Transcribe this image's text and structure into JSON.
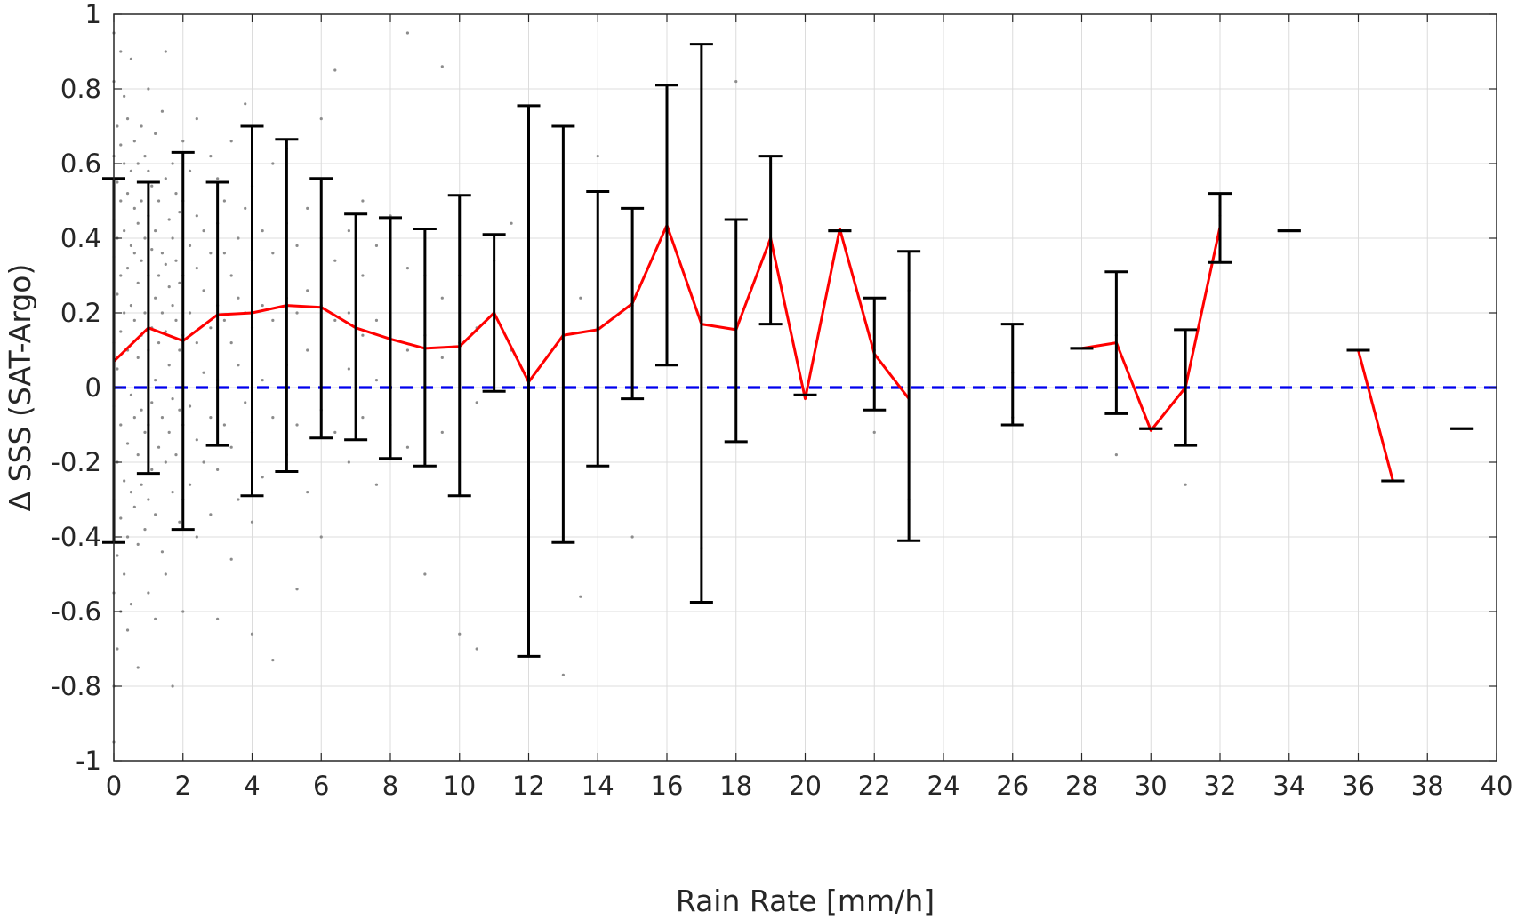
{
  "chart_data": {
    "type": "scatter",
    "xlabel": "Rain Rate [mm/h]",
    "ylabel": "Δ SSS (SAT-Argo)",
    "xlim": [
      0,
      40
    ],
    "ylim": [
      -1,
      1
    ],
    "xticks": [
      0,
      2,
      4,
      6,
      8,
      10,
      12,
      14,
      16,
      18,
      20,
      22,
      24,
      26,
      28,
      30,
      32,
      34,
      36,
      38,
      40
    ],
    "yticks": [
      -1,
      -0.8,
      -0.6,
      -0.4,
      -0.2,
      0,
      0.2,
      0.4,
      0.6,
      0.8,
      1
    ],
    "ytick_labels": [
      "-1",
      "-0.8",
      "-0.6",
      "-0.4",
      "-0.2",
      "0",
      "0.2",
      "0.4",
      "0.6",
      "0.8",
      "1"
    ],
    "grid": true,
    "colors": {
      "scatter": "#8c8c8c",
      "mean_line": "#ff0000",
      "error_bars": "#000000",
      "zero_line": "#0000ee"
    },
    "zero_line": {
      "y": 0,
      "style": "dashed"
    },
    "error_bars": [
      {
        "x": 0,
        "low": -0.415,
        "high": 0.56
      },
      {
        "x": 1,
        "low": -0.23,
        "high": 0.55
      },
      {
        "x": 2,
        "low": -0.38,
        "high": 0.63
      },
      {
        "x": 3,
        "low": -0.155,
        "high": 0.55
      },
      {
        "x": 4,
        "low": -0.29,
        "high": 0.7
      },
      {
        "x": 5,
        "low": -0.225,
        "high": 0.665
      },
      {
        "x": 6,
        "low": -0.135,
        "high": 0.56
      },
      {
        "x": 7,
        "low": -0.14,
        "high": 0.465
      },
      {
        "x": 8,
        "low": -0.19,
        "high": 0.455
      },
      {
        "x": 9,
        "low": -0.21,
        "high": 0.425
      },
      {
        "x": 10,
        "low": -0.29,
        "high": 0.515
      },
      {
        "x": 11,
        "low": -0.01,
        "high": 0.41
      },
      {
        "x": 12,
        "low": -0.72,
        "high": 0.755
      },
      {
        "x": 13,
        "low": -0.415,
        "high": 0.7
      },
      {
        "x": 14,
        "low": -0.21,
        "high": 0.525
      },
      {
        "x": 15,
        "low": -0.03,
        "high": 0.48
      },
      {
        "x": 16,
        "low": 0.06,
        "high": 0.81
      },
      {
        "x": 17,
        "low": -0.575,
        "high": 0.92
      },
      {
        "x": 18,
        "low": -0.145,
        "high": 0.45
      },
      {
        "x": 19,
        "low": 0.17,
        "high": 0.62
      },
      {
        "x": 20,
        "low": -0.02,
        "high": -0.02
      },
      {
        "x": 21,
        "low": 0.42,
        "high": 0.42
      },
      {
        "x": 22,
        "low": -0.06,
        "high": 0.24
      },
      {
        "x": 23,
        "low": -0.41,
        "high": 0.365
      },
      {
        "x": 26,
        "low": -0.1,
        "high": 0.17
      },
      {
        "x": 28,
        "low": 0.105,
        "high": 0.105
      },
      {
        "x": 29,
        "low": -0.07,
        "high": 0.31
      },
      {
        "x": 30,
        "low": -0.11,
        "high": -0.11
      },
      {
        "x": 31,
        "low": -0.155,
        "high": 0.155
      },
      {
        "x": 32,
        "low": 0.335,
        "high": 0.52
      },
      {
        "x": 34,
        "low": 0.42,
        "high": 0.42
      },
      {
        "x": 36,
        "low": 0.1,
        "high": 0.1
      },
      {
        "x": 37,
        "low": -0.25,
        "high": -0.25
      },
      {
        "x": 39,
        "low": -0.11,
        "high": -0.11
      }
    ],
    "mean_segments": [
      [
        [
          0,
          0.07
        ],
        [
          1,
          0.16
        ],
        [
          2,
          0.125
        ],
        [
          3,
          0.195
        ],
        [
          4,
          0.2
        ],
        [
          5,
          0.22
        ],
        [
          6,
          0.215
        ],
        [
          7,
          0.16
        ],
        [
          8,
          0.13
        ],
        [
          9,
          0.105
        ],
        [
          10,
          0.11
        ],
        [
          11,
          0.2
        ],
        [
          12,
          0.015
        ],
        [
          13,
          0.14
        ],
        [
          14,
          0.155
        ],
        [
          15,
          0.225
        ],
        [
          16,
          0.435
        ],
        [
          17,
          0.17
        ],
        [
          18,
          0.155
        ],
        [
          19,
          0.4
        ],
        [
          20,
          -0.03
        ],
        [
          21,
          0.425
        ],
        [
          22,
          0.09
        ],
        [
          23,
          -0.03
        ]
      ],
      [
        [
          28,
          0.105
        ],
        [
          29,
          0.12
        ],
        [
          30,
          -0.115
        ],
        [
          31,
          0.0
        ],
        [
          32,
          0.43
        ]
      ],
      [
        [
          36,
          0.1
        ],
        [
          37,
          -0.25
        ]
      ]
    ],
    "scatter_points": [
      [
        0.0,
        0.12
      ],
      [
        0.0,
        0.35
      ],
      [
        0.0,
        -0.05
      ],
      [
        0.0,
        0.45
      ],
      [
        0.0,
        -0.3
      ],
      [
        0.0,
        0.62
      ],
      [
        0.0,
        -0.55
      ],
      [
        0.0,
        0.82
      ],
      [
        0.0,
        -0.8
      ],
      [
        0.0,
        0.95
      ],
      [
        0.0,
        -0.95
      ],
      [
        0.1,
        0.25
      ],
      [
        0.1,
        0.05
      ],
      [
        0.1,
        0.4
      ],
      [
        0.1,
        -0.2
      ],
      [
        0.1,
        0.55
      ],
      [
        0.1,
        -0.45
      ],
      [
        0.1,
        0.7
      ],
      [
        0.1,
        -0.7
      ],
      [
        0.2,
        0.15
      ],
      [
        0.2,
        0.3
      ],
      [
        0.2,
        -0.1
      ],
      [
        0.2,
        0.5
      ],
      [
        0.2,
        -0.35
      ],
      [
        0.2,
        0.65
      ],
      [
        0.2,
        -0.6
      ],
      [
        0.2,
        0.9
      ],
      [
        0.3,
        0.2
      ],
      [
        0.3,
        0.0
      ],
      [
        0.3,
        0.42
      ],
      [
        0.3,
        -0.25
      ],
      [
        0.3,
        0.6
      ],
      [
        0.3,
        -0.5
      ],
      [
        0.3,
        0.78
      ],
      [
        0.4,
        0.1
      ],
      [
        0.4,
        0.32
      ],
      [
        0.4,
        -0.15
      ],
      [
        0.4,
        0.52
      ],
      [
        0.4,
        -0.4
      ],
      [
        0.4,
        0.72
      ],
      [
        0.4,
        -0.65
      ],
      [
        0.5,
        0.22
      ],
      [
        0.5,
        -0.02
      ],
      [
        0.5,
        0.38
      ],
      [
        0.5,
        -0.28
      ],
      [
        0.5,
        0.58
      ],
      [
        0.5,
        -0.58
      ],
      [
        0.5,
        0.88
      ],
      [
        0.6,
        0.18
      ],
      [
        0.6,
        0.36
      ],
      [
        0.6,
        -0.08
      ],
      [
        0.6,
        0.48
      ],
      [
        0.6,
        -0.32
      ],
      [
        0.6,
        0.66
      ],
      [
        0.7,
        0.08
      ],
      [
        0.7,
        0.28
      ],
      [
        0.7,
        -0.18
      ],
      [
        0.7,
        0.44
      ],
      [
        0.7,
        -0.42
      ],
      [
        0.7,
        0.6
      ],
      [
        0.7,
        -0.75
      ],
      [
        0.8,
        0.14
      ],
      [
        0.8,
        0.34
      ],
      [
        0.8,
        -0.06
      ],
      [
        0.8,
        0.5
      ],
      [
        0.8,
        -0.26
      ],
      [
        0.8,
        0.7
      ],
      [
        0.9,
        0.2
      ],
      [
        0.9,
        -0.12
      ],
      [
        0.9,
        0.4
      ],
      [
        0.9,
        -0.38
      ],
      [
        0.9,
        0.62
      ],
      [
        1.0,
        0.1
      ],
      [
        1.0,
        0.3
      ],
      [
        1.0,
        -0.1
      ],
      [
        1.0,
        0.46
      ],
      [
        1.0,
        -0.3
      ],
      [
        1.0,
        0.58
      ],
      [
        1.0,
        -0.55
      ],
      [
        1.0,
        0.8
      ],
      [
        1.1,
        0.16
      ],
      [
        1.1,
        -0.04
      ],
      [
        1.1,
        0.37
      ],
      [
        1.1,
        -0.22
      ],
      [
        1.1,
        0.54
      ],
      [
        1.2,
        0.24
      ],
      [
        1.2,
        0.02
      ],
      [
        1.2,
        0.42
      ],
      [
        1.2,
        -0.34
      ],
      [
        1.2,
        0.68
      ],
      [
        1.2,
        -0.62
      ],
      [
        1.3,
        0.12
      ],
      [
        1.3,
        0.3
      ],
      [
        1.3,
        -0.16
      ],
      [
        1.3,
        0.5
      ],
      [
        1.4,
        0.2
      ],
      [
        1.4,
        -0.08
      ],
      [
        1.4,
        0.36
      ],
      [
        1.4,
        -0.44
      ],
      [
        1.4,
        0.74
      ],
      [
        1.5,
        0.15
      ],
      [
        1.5,
        0.33
      ],
      [
        1.5,
        -0.2
      ],
      [
        1.5,
        0.56
      ],
      [
        1.5,
        -0.5
      ],
      [
        1.5,
        0.9
      ],
      [
        1.6,
        0.06
      ],
      [
        1.6,
        0.27
      ],
      [
        1.6,
        -0.12
      ],
      [
        1.6,
        0.45
      ],
      [
        1.7,
        0.22
      ],
      [
        1.7,
        -0.03
      ],
      [
        1.7,
        0.4
      ],
      [
        1.7,
        -0.28
      ],
      [
        1.7,
        0.6
      ],
      [
        1.7,
        -0.8
      ],
      [
        1.8,
        0.18
      ],
      [
        1.8,
        0.34
      ],
      [
        1.8,
        -0.18
      ],
      [
        1.8,
        0.52
      ],
      [
        1.9,
        0.1
      ],
      [
        1.9,
        0.28
      ],
      [
        1.9,
        -0.06
      ],
      [
        1.9,
        0.47
      ],
      [
        1.9,
        -0.36
      ],
      [
        2.0,
        0.14
      ],
      [
        2.0,
        0.3
      ],
      [
        2.0,
        -0.1
      ],
      [
        2.0,
        0.5
      ],
      [
        2.0,
        -0.3
      ],
      [
        2.0,
        0.66
      ],
      [
        2.0,
        -0.6
      ],
      [
        2.2,
        0.2
      ],
      [
        2.2,
        -0.05
      ],
      [
        2.2,
        0.38
      ],
      [
        2.2,
        -0.26
      ],
      [
        2.2,
        0.58
      ],
      [
        2.4,
        0.12
      ],
      [
        2.4,
        0.32
      ],
      [
        2.4,
        -0.14
      ],
      [
        2.4,
        0.46
      ],
      [
        2.4,
        -0.4
      ],
      [
        2.4,
        0.72
      ],
      [
        2.6,
        0.26
      ],
      [
        2.6,
        0.04
      ],
      [
        2.6,
        0.42
      ],
      [
        2.6,
        -0.2
      ],
      [
        2.8,
        0.16
      ],
      [
        2.8,
        -0.08
      ],
      [
        2.8,
        0.36
      ],
      [
        2.8,
        -0.34
      ],
      [
        2.8,
        0.62
      ],
      [
        3.0,
        0.22
      ],
      [
        3.0,
        0.02
      ],
      [
        3.0,
        0.44
      ],
      [
        3.0,
        -0.22
      ],
      [
        3.0,
        0.56
      ],
      [
        3.0,
        -0.62
      ],
      [
        3.2,
        0.18
      ],
      [
        3.2,
        0.36
      ],
      [
        3.2,
        -0.1
      ],
      [
        3.2,
        0.5
      ],
      [
        3.4,
        0.12
      ],
      [
        3.4,
        0.3
      ],
      [
        3.4,
        -0.16
      ],
      [
        3.4,
        0.66
      ],
      [
        3.4,
        -0.46
      ],
      [
        3.6,
        0.24
      ],
      [
        3.6,
        0.06
      ],
      [
        3.6,
        0.4
      ],
      [
        3.6,
        -0.3
      ],
      [
        3.8,
        0.2
      ],
      [
        3.8,
        -0.04
      ],
      [
        3.8,
        0.48
      ],
      [
        3.8,
        0.76
      ],
      [
        4.0,
        0.16
      ],
      [
        4.0,
        0.34
      ],
      [
        4.0,
        -0.12
      ],
      [
        4.0,
        0.54
      ],
      [
        4.0,
        -0.36
      ],
      [
        4.0,
        -0.66
      ],
      [
        4.3,
        0.22
      ],
      [
        4.3,
        0.02
      ],
      [
        4.3,
        0.42
      ],
      [
        4.3,
        -0.24
      ],
      [
        4.6,
        0.18
      ],
      [
        4.6,
        0.36
      ],
      [
        4.6,
        -0.08
      ],
      [
        4.6,
        0.6
      ],
      [
        4.6,
        -0.73
      ],
      [
        5.0,
        0.24
      ],
      [
        5.0,
        0.06
      ],
      [
        5.0,
        0.44
      ],
      [
        5.0,
        -0.18
      ],
      [
        5.0,
        0.64
      ],
      [
        5.3,
        0.2
      ],
      [
        5.3,
        0.38
      ],
      [
        5.3,
        -0.1
      ],
      [
        5.3,
        -0.54
      ],
      [
        5.6,
        0.26
      ],
      [
        5.6,
        0.1
      ],
      [
        5.6,
        0.48
      ],
      [
        5.6,
        -0.28
      ],
      [
        6.0,
        0.22
      ],
      [
        6.0,
        0.4
      ],
      [
        6.0,
        -0.06
      ],
      [
        6.0,
        0.72
      ],
      [
        6.0,
        -0.4
      ],
      [
        6.4,
        0.18
      ],
      [
        6.4,
        0.34
      ],
      [
        6.4,
        -0.12
      ],
      [
        6.4,
        0.85
      ],
      [
        6.8,
        0.2
      ],
      [
        6.8,
        0.05
      ],
      [
        6.8,
        0.42
      ],
      [
        6.8,
        -0.2
      ],
      [
        7.2,
        0.14
      ],
      [
        7.2,
        0.3
      ],
      [
        7.2,
        -0.08
      ],
      [
        7.2,
        0.5
      ],
      [
        7.6,
        0.18
      ],
      [
        7.6,
        0.02
      ],
      [
        7.6,
        0.38
      ],
      [
        7.6,
        -0.26
      ],
      [
        8.0,
        0.12
      ],
      [
        8.0,
        0.28
      ],
      [
        8.0,
        -0.1
      ],
      [
        8.0,
        0.46
      ],
      [
        8.5,
        0.1
      ],
      [
        8.5,
        0.32
      ],
      [
        8.5,
        -0.16
      ],
      [
        8.5,
        0.95
      ],
      [
        9.0,
        0.14
      ],
      [
        9.0,
        0.0
      ],
      [
        9.0,
        0.3
      ],
      [
        9.0,
        -0.5
      ],
      [
        9.5,
        0.08
      ],
      [
        9.5,
        0.24
      ],
      [
        9.5,
        -0.12
      ],
      [
        9.5,
        0.86
      ],
      [
        10.0,
        0.12
      ],
      [
        10.0,
        0.3
      ],
      [
        10.0,
        -0.66
      ],
      [
        10.5,
        0.16
      ],
      [
        10.5,
        -0.04
      ],
      [
        10.5,
        -0.7
      ],
      [
        11.0,
        0.2
      ],
      [
        11.0,
        0.34
      ],
      [
        11.5,
        0.1
      ],
      [
        11.5,
        0.44
      ],
      [
        12.0,
        0.05
      ],
      [
        12.0,
        0.3
      ],
      [
        12.0,
        -0.3
      ],
      [
        13.0,
        0.14
      ],
      [
        13.0,
        -0.77
      ],
      [
        13.5,
        0.24
      ],
      [
        13.5,
        -0.56
      ],
      [
        14.0,
        0.16
      ],
      [
        14.0,
        0.62
      ],
      [
        15.0,
        0.22
      ],
      [
        15.0,
        -0.4
      ],
      [
        16.0,
        0.42
      ],
      [
        17.0,
        0.18
      ],
      [
        17.0,
        -0.43
      ],
      [
        18.0,
        0.82
      ],
      [
        18.0,
        0.16
      ],
      [
        19.0,
        0.4
      ],
      [
        22.0,
        0.1
      ],
      [
        22.0,
        -0.12
      ],
      [
        23.0,
        0.26
      ],
      [
        23.0,
        -0.3
      ],
      [
        26.0,
        0.04
      ],
      [
        26.0,
        -0.08
      ],
      [
        29.0,
        -0.18
      ],
      [
        29.0,
        0.14
      ],
      [
        31.0,
        -0.26
      ],
      [
        31.0,
        0.02
      ],
      [
        32.0,
        0.46
      ]
    ]
  }
}
